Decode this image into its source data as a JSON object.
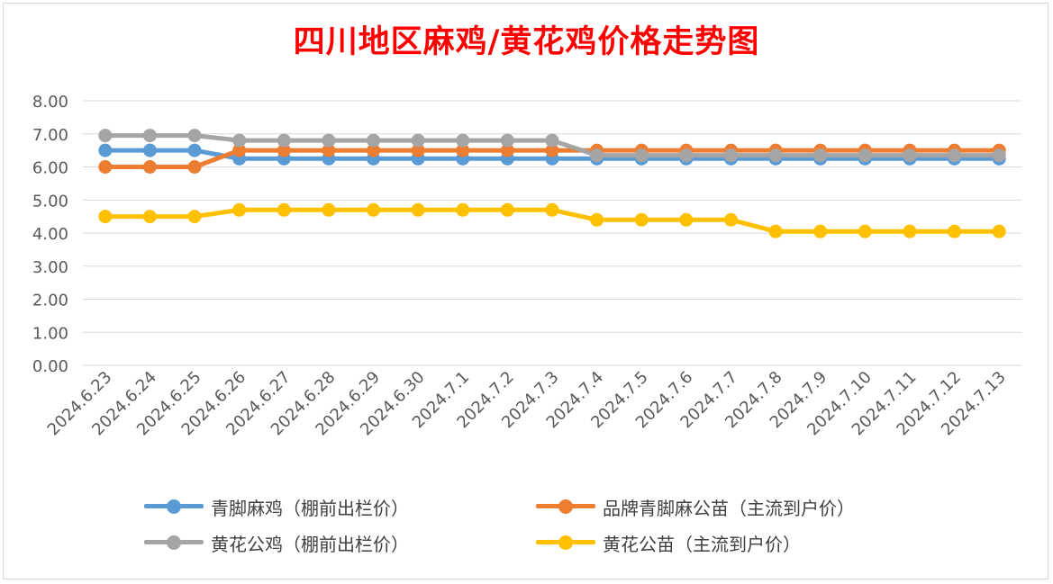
{
  "chart_data": {
    "type": "line",
    "title": "四川地区麻鸡/黄花鸡价格走势图",
    "ylim": [
      0,
      8
    ],
    "y_ticks": [
      "0.00",
      "1.00",
      "2.00",
      "3.00",
      "4.00",
      "5.00",
      "6.00",
      "7.00",
      "8.00"
    ],
    "grid": true,
    "legend_position": "bottom",
    "categories": [
      "2024.6.23",
      "2024.6.24",
      "2024.6.25",
      "2024.6.26",
      "2024.6.27",
      "2024.6.28",
      "2024.6.29",
      "2024.6.30",
      "2024.7.1",
      "2024.7.2",
      "2024.7.3",
      "2024.7.4",
      "2024.7.5",
      "2024.7.6",
      "2024.7.7",
      "2024.7.8",
      "2024.7.9",
      "2024.7.10",
      "2024.7.11",
      "2024.7.12",
      "2024.7.13"
    ],
    "series": [
      {
        "name": "青脚麻鸡（棚前出栏价）",
        "color": "#5b9bd5",
        "values": [
          6.5,
          6.5,
          6.5,
          6.25,
          6.25,
          6.25,
          6.25,
          6.25,
          6.25,
          6.25,
          6.25,
          6.25,
          6.25,
          6.25,
          6.25,
          6.25,
          6.25,
          6.25,
          6.25,
          6.25,
          6.25
        ]
      },
      {
        "name": "品牌青脚麻公苗（主流到户价）",
        "color": "#ed7d31",
        "values": [
          6.0,
          6.0,
          6.0,
          6.5,
          6.5,
          6.5,
          6.5,
          6.5,
          6.5,
          6.5,
          6.5,
          6.5,
          6.5,
          6.5,
          6.5,
          6.5,
          6.5,
          6.5,
          6.5,
          6.5,
          6.5
        ]
      },
      {
        "name": "黄花公鸡（棚前出栏价）",
        "color": "#a5a5a5",
        "values": [
          6.95,
          6.95,
          6.95,
          6.8,
          6.8,
          6.8,
          6.8,
          6.8,
          6.8,
          6.8,
          6.8,
          6.35,
          6.35,
          6.35,
          6.35,
          6.35,
          6.35,
          6.35,
          6.35,
          6.35,
          6.35
        ]
      },
      {
        "name": "黄花公苗（主流到户价）",
        "color": "#ffc000",
        "values": [
          4.5,
          4.5,
          4.5,
          4.7,
          4.7,
          4.7,
          4.7,
          4.7,
          4.7,
          4.7,
          4.7,
          4.4,
          4.4,
          4.4,
          4.4,
          4.05,
          4.05,
          4.05,
          4.05,
          4.05,
          4.05
        ]
      }
    ]
  }
}
